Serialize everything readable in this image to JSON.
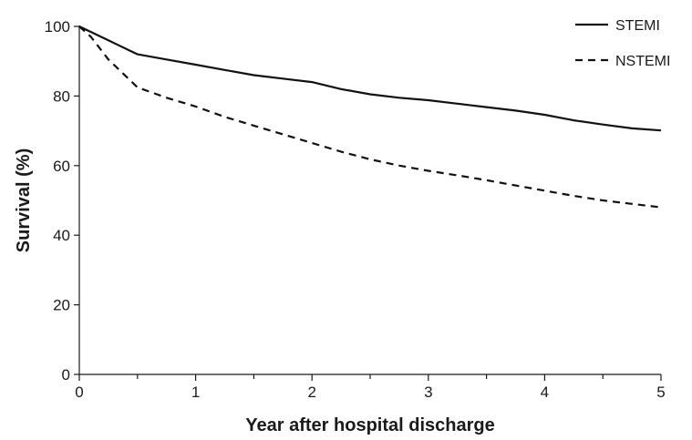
{
  "chart_data": {
    "type": "line",
    "title": "",
    "xlabel": "Year after hospital discharge",
    "ylabel": "Survival (%)",
    "xlim": [
      0,
      5
    ],
    "ylim": [
      0,
      100
    ],
    "xticks": [
      0,
      1,
      2,
      3,
      4,
      5
    ],
    "xtick_labels": [
      "0",
      "1",
      "2",
      "3",
      "4",
      "5"
    ],
    "xticks_minor": [
      0.5,
      1.5,
      2.5,
      3.5,
      4.5
    ],
    "yticks": [
      0,
      20,
      40,
      60,
      80,
      100
    ],
    "ytick_labels": [
      "0",
      "20",
      "40",
      "60",
      "80",
      "100"
    ],
    "grid": false,
    "legend_position": "top-right",
    "series": [
      {
        "name": "STEMI",
        "line_style": "solid",
        "color": "#111111",
        "x": [
          0,
          0.25,
          0.5,
          0.75,
          1,
          1.25,
          1.5,
          1.75,
          2,
          2.25,
          2.5,
          2.75,
          3,
          3.25,
          3.5,
          3.75,
          4,
          4.25,
          4.5,
          4.75,
          5
        ],
        "y": [
          100,
          96,
          92,
          90.5,
          89,
          87.5,
          86,
          85,
          84,
          82,
          80.5,
          79.5,
          78.8,
          77.8,
          76.8,
          75.8,
          74.6,
          73,
          71.8,
          70.7,
          70.1
        ]
      },
      {
        "name": "NSTEMI",
        "line_style": "dashed",
        "color": "#111111",
        "x": [
          0,
          0.1,
          0.25,
          0.5,
          0.75,
          1,
          1.25,
          1.5,
          1.75,
          2,
          2.25,
          2.5,
          2.75,
          3,
          3.25,
          3.5,
          3.75,
          4,
          4.25,
          4.5,
          4.75,
          5
        ],
        "y": [
          100,
          97,
          90.5,
          82.5,
          79.5,
          77,
          74,
          71.5,
          69,
          66.5,
          64,
          61.8,
          60,
          58.5,
          57.2,
          55.8,
          54.3,
          52.8,
          51.3,
          50,
          49,
          48
        ]
      }
    ]
  }
}
